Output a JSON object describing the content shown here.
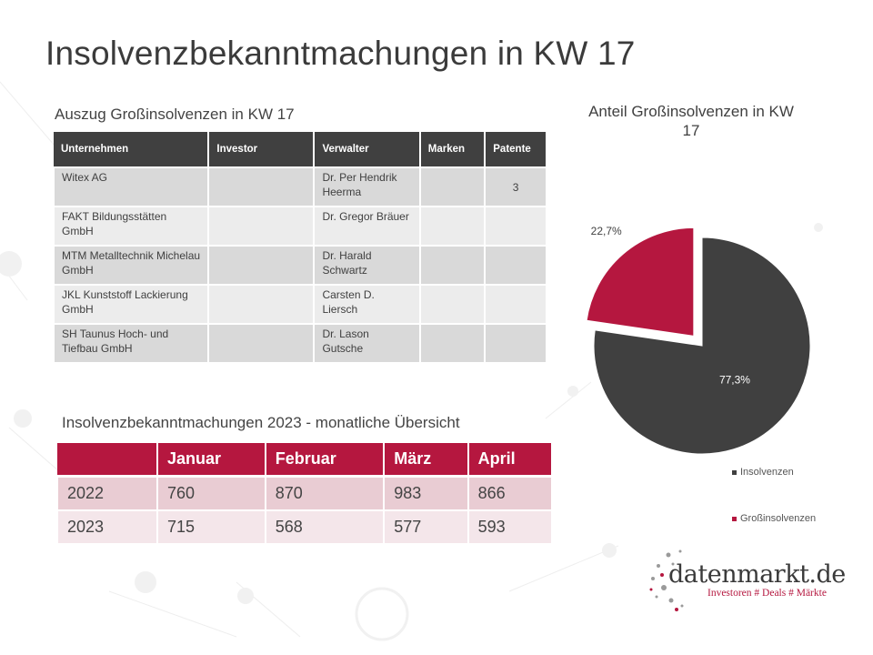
{
  "title": "Insolvenzbekanntmachungen in KW 17",
  "table1": {
    "subtitle": "Auszug Großinsolvenzen in KW 17",
    "headers": [
      "Unternehmen",
      "Investor",
      "Verwalter",
      "Marken",
      "Patente"
    ],
    "rows": [
      [
        "Witex AG",
        "",
        "Dr. Per Hendrik Heerma",
        "",
        "3"
      ],
      [
        "FAKT Bildungsstätten GmbH",
        "",
        "Dr. Gregor Bräuer",
        "",
        ""
      ],
      [
        "MTM Metalltechnik Michelau GmbH",
        "",
        "Dr. Harald Schwartz",
        "",
        ""
      ],
      [
        "JKL Kunststoff Lackierung GmbH",
        "",
        "Carsten D. Liersch",
        "",
        ""
      ],
      [
        "SH Taunus Hoch- und Tiefbau GmbH",
        "",
        "Dr. Lason Gutsche",
        "",
        ""
      ]
    ]
  },
  "table2": {
    "subtitle": "Insolvenzbekanntmachungen 2023 - monatliche Übersicht",
    "headers": [
      "",
      "Januar",
      "Februar",
      "März",
      "April"
    ],
    "rows": [
      [
        "2022",
        "760",
        "870",
        "983",
        "866"
      ],
      [
        "2023",
        "715",
        "568",
        "577",
        "593"
      ]
    ]
  },
  "chart_data": {
    "type": "pie",
    "title": "Anteil Großinsolvenzen in KW 17",
    "labels": [
      "Insolvenzen",
      "Großinsolvenzen"
    ],
    "values": [
      77.3,
      22.7
    ],
    "data_labels": [
      "77,3%",
      "22,7%"
    ],
    "exploded": "Großinsolvenzen",
    "colors": [
      "#404040",
      "#b5173f"
    ],
    "legend": "bottom-right"
  },
  "logo": {
    "name": "datenmarkt.de",
    "tagline": "Investoren # Deals # Märkte"
  }
}
